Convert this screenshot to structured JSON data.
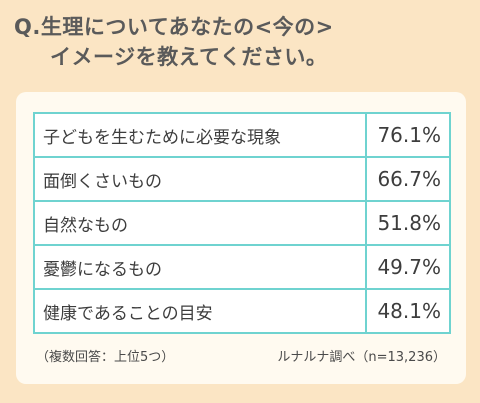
{
  "question": {
    "line1": "Q.生理についてあなたの<今の>",
    "line2": "イメージを教えてください。"
  },
  "chart_data": {
    "type": "table",
    "rows": [
      {
        "label": "子どもを生むために必要な現象",
        "value": 76.1,
        "display": "76.1%"
      },
      {
        "label": "面倒くさいもの",
        "value": 66.7,
        "display": "66.7%"
      },
      {
        "label": "自然なもの",
        "value": 51.8,
        "display": "51.8%"
      },
      {
        "label": "憂鬱になるもの",
        "value": 49.7,
        "display": "49.7%"
      },
      {
        "label": "健康であることの目安",
        "value": 48.1,
        "display": "48.1%"
      }
    ]
  },
  "footer": {
    "note": "（複数回答：上位5つ）",
    "source": "ルナルナ調べ（n=13,236）"
  }
}
